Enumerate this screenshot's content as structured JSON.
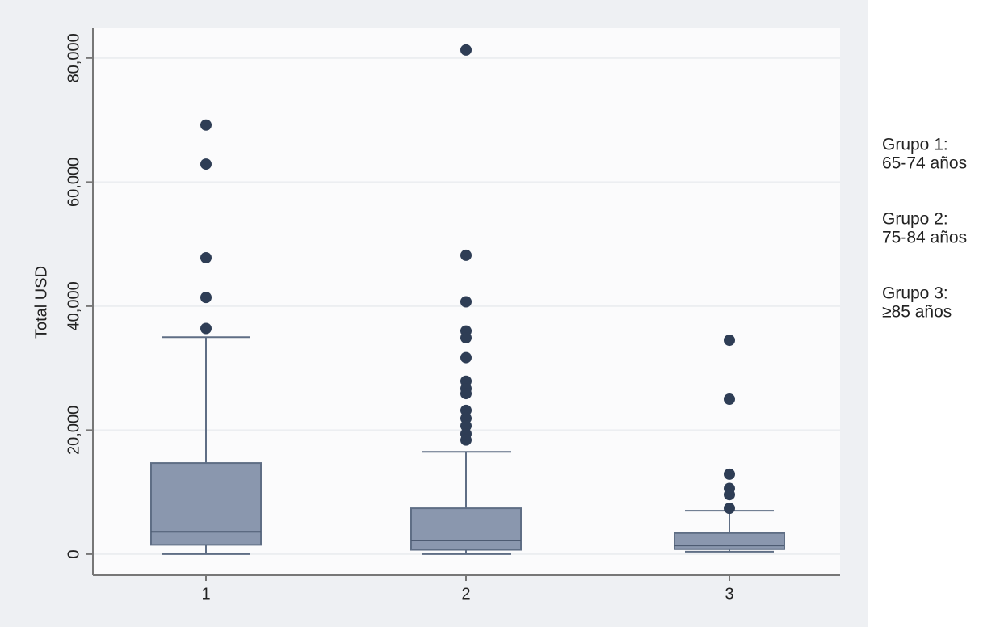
{
  "chart_data": {
    "type": "box",
    "ylabel": "Total USD",
    "categories": [
      "1",
      "2",
      "3"
    ],
    "boxes": [
      {
        "min": 0,
        "q1": 1500,
        "median": 3600,
        "q3": 14700,
        "max": 35000,
        "outliers": [
          69200,
          62900,
          47800,
          41400,
          36400
        ]
      },
      {
        "min": 0,
        "q1": 700,
        "median": 2200,
        "q3": 7400,
        "max": 16500,
        "outliers": [
          81300,
          48200,
          40700,
          36000,
          34900,
          31700,
          27900,
          26700,
          25900,
          23200,
          21900,
          20700,
          19400,
          18400
        ]
      },
      {
        "min": 400,
        "q1": 800,
        "median": 1400,
        "q3": 3400,
        "max": 7000,
        "outliers": [
          34500,
          25000,
          12900,
          10600,
          9600,
          7400
        ]
      }
    ],
    "ylim": [
      -3400,
      84800
    ],
    "yticks": [
      0,
      {
        "value": 20000,
        "label": "20,000"
      },
      {
        "value": 40000,
        "label": "40,000"
      },
      {
        "value": 60000,
        "label": "60,000"
      },
      {
        "value": 80000,
        "label": "80,000"
      }
    ],
    "grid": true,
    "color": "#8a97ae",
    "outlier_color": "#2e3d55",
    "annotations": [
      [
        "Grupo 1:",
        "65-74 años"
      ],
      [
        "Grupo 2:",
        "75-84 años"
      ],
      [
        "Grupo 3:",
        "≥85 años"
      ]
    ]
  }
}
